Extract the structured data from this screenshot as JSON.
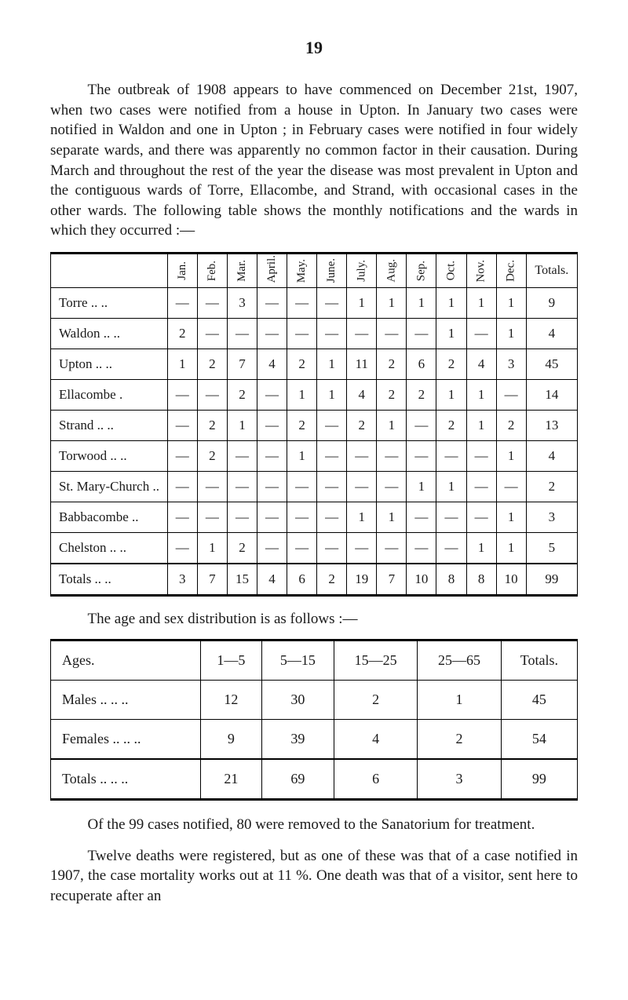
{
  "page_number": "19",
  "paragraph1": "The outbreak of 1908 appears to have commenced on December 21st, 1907, when two cases were notified from a house in Upton. In January two cases were notified in Waldon and one in Upton ; in February cases were notified in four widely separate wards, and there was apparently no common factor in their causation. During March and throughout the rest of the year the disease was most prevalent in Upton and the contiguous wards of Torre, Ellacombe, and Strand, with occasional cases in the other wards. The following table shows the monthly notifications and the wards in which they occurred :—",
  "wards_table": {
    "month_headers": [
      "Jan.",
      "Feb.",
      "Mar.",
      "April.",
      "May.",
      "June.",
      "July.",
      "Aug.",
      "Sep.",
      "Oct.",
      "Nov.",
      "Dec."
    ],
    "totals_header": "Totals.",
    "rows": [
      {
        "label": "Torre            ..    ..",
        "cells": [
          "—",
          "—",
          "3",
          "—",
          "—",
          "—",
          "1",
          "1",
          "1",
          "1",
          "1",
          "1"
        ],
        "total": "9"
      },
      {
        "label": "Waldon        ..    ..",
        "cells": [
          "2",
          "—",
          "—",
          "—",
          "—",
          "—",
          "—",
          "—",
          "—",
          "1",
          "—",
          "1"
        ],
        "total": "4"
      },
      {
        "label": "Upton           ..    ..",
        "cells": [
          "1",
          "2",
          "7",
          "4",
          "2",
          "1",
          "11",
          "2",
          "6",
          "2",
          "4",
          "3"
        ],
        "total": "45"
      },
      {
        "label": "Ellacombe              .",
        "cells": [
          "—",
          "—",
          "2",
          "—",
          "1",
          "1",
          "4",
          "2",
          "2",
          "1",
          "1",
          "—"
        ],
        "total": "14"
      },
      {
        "label": "Strand          ..    ..",
        "cells": [
          "—",
          "2",
          "1",
          "—",
          "2",
          "—",
          "2",
          "1",
          "—",
          "2",
          "1",
          "2"
        ],
        "total": "13"
      },
      {
        "label": "Torwood     ..    ..",
        "cells": [
          "—",
          "2",
          "—",
          "—",
          "1",
          "—",
          "—",
          "—",
          "—",
          "—",
          "—",
          "1"
        ],
        "total": "4"
      },
      {
        "label": "St. Mary-Church ..",
        "cells": [
          "—",
          "—",
          "—",
          "—",
          "—",
          "—",
          "—",
          "—",
          "1",
          "1",
          "—",
          "—"
        ],
        "total": "2"
      },
      {
        "label": "Babbacombe        ..",
        "cells": [
          "—",
          "—",
          "—",
          "—",
          "—",
          "—",
          "1",
          "1",
          "—",
          "—",
          "—",
          "1"
        ],
        "total": "3"
      },
      {
        "label": "Chelston      ..    ..",
        "cells": [
          "—",
          "1",
          "2",
          "—",
          "—",
          "—",
          "—",
          "—",
          "—",
          "—",
          "1",
          "1"
        ],
        "total": "5"
      }
    ],
    "totals_row": {
      "label": "Totals          ..    ..",
      "cells": [
        "3",
        "7",
        "15",
        "4",
        "6",
        "2",
        "19",
        "7",
        "10",
        "8",
        "8",
        "10"
      ],
      "total": "99"
    }
  },
  "caption_age": "The age and sex distribution is as follows :—",
  "age_table": {
    "headers": [
      "Ages.",
      "1—5",
      "5—15",
      "15—25",
      "25—65",
      "Totals."
    ],
    "rows": [
      {
        "label": "Males           ..    ..    ..",
        "cells": [
          "12",
          "30",
          "2",
          "1",
          "45"
        ]
      },
      {
        "label": "Females      ..    ..    ..",
        "cells": [
          "9",
          "39",
          "4",
          "2",
          "54"
        ]
      }
    ],
    "totals_row": {
      "label": "Totals          ..    ..    ..",
      "cells": [
        "21",
        "69",
        "6",
        "3",
        "99"
      ]
    }
  },
  "paragraph2": "Of the 99 cases notified, 80 were removed to the Sanatorium for treatment.",
  "paragraph3": "Twelve deaths were registered, but as one of these was that of a case notified in 1907, the case mortality works out at 11 %. One death was that of a visitor, sent here to recuperate after an"
}
